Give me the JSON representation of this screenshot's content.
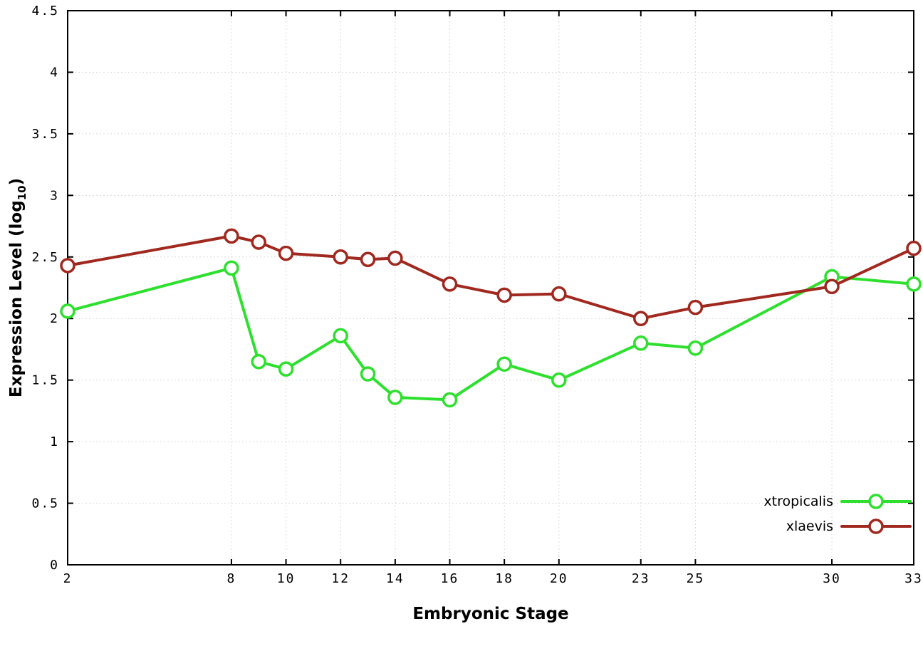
{
  "chart_data": {
    "type": "line",
    "title": "",
    "xlabel": "Embryonic Stage",
    "ylabel": {
      "pre": "Expression Level (log",
      "sub": "10",
      "post": ")"
    },
    "xlim": [
      2,
      33
    ],
    "ylim": [
      0,
      4.5
    ],
    "grid": true,
    "legend_position": "bottom-right",
    "xticks": {
      "values": [
        2,
        8,
        10,
        12,
        14,
        16,
        18,
        20,
        23,
        25,
        30,
        33
      ],
      "labels": [
        "2",
        "8",
        "10",
        "12",
        "14",
        "16",
        "18",
        "20",
        "23",
        "25",
        "30",
        "33"
      ]
    },
    "yticks": {
      "values": [
        0,
        0.5,
        1,
        1.5,
        2,
        2.5,
        3,
        3.5,
        4,
        4.5
      ],
      "labels": [
        "0",
        "0.5",
        "1",
        "1.5",
        "2",
        "2.5",
        "3",
        "3.5",
        "4",
        "4.5"
      ]
    },
    "x": [
      2,
      8,
      9,
      10,
      12,
      13,
      14,
      16,
      18,
      20,
      23,
      25,
      30,
      33
    ],
    "series": [
      {
        "name": "xtropicalis",
        "color": "#2ee02e",
        "values": [
          2.06,
          2.41,
          1.65,
          1.59,
          1.86,
          1.55,
          1.36,
          1.34,
          1.63,
          1.5,
          1.8,
          1.76,
          2.34,
          2.28
        ]
      },
      {
        "name": "xlaevis",
        "color": "#a0281e",
        "values": [
          2.43,
          2.67,
          2.62,
          2.53,
          2.5,
          2.48,
          2.49,
          2.28,
          2.19,
          2.2,
          2.0,
          2.09,
          2.26,
          2.57
        ]
      }
    ]
  },
  "colors": {
    "background": "#ffffff",
    "border": "#000000",
    "grid": "#dcdcdc"
  }
}
